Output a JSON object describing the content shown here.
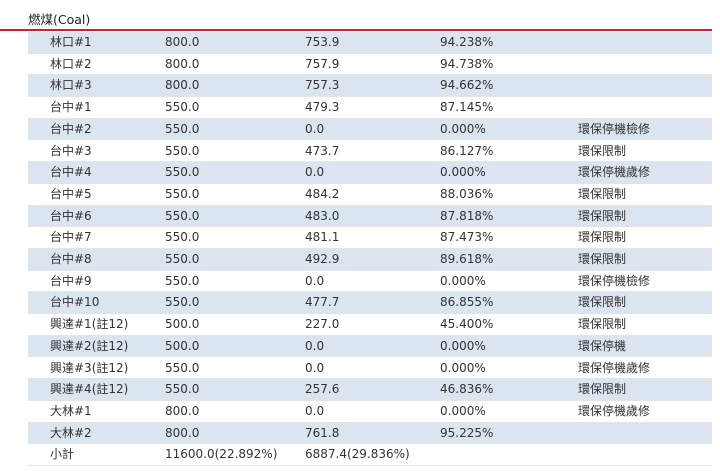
{
  "table": {
    "section": "燃煤(Coal)",
    "rows": [
      [
        "林口#1",
        "800.0",
        "753.9",
        "94.238%"
      ],
      [
        "林口#2",
        "800.0",
        "757.9",
        "94.738%"
      ],
      [
        "林口#3",
        "800.0",
        "757.3",
        "94.662%"
      ],
      [
        "台中#1",
        "550.0",
        "479.3",
        "87.145%"
      ],
      [
        "台中#2",
        "550.0",
        "0.0",
        "0.000%",
        "環保停機檢修"
      ],
      [
        "台中#3",
        "550.0",
        "473.7",
        "86.127%",
        "環保限制"
      ],
      [
        "台中#4",
        "550.0",
        "0.0",
        "0.000%",
        "環保停機歲修"
      ],
      [
        "台中#5",
        "550.0",
        "484.2",
        "88.036%",
        "環保限制"
      ],
      [
        "台中#6",
        "550.0",
        "483.0",
        "87.818%",
        "環保限制"
      ],
      [
        "台中#7",
        "550.0",
        "481.1",
        "87.473%",
        "環保限制"
      ],
      [
        "台中#8",
        "550.0",
        "492.9",
        "89.618%",
        "環保限制"
      ],
      [
        "台中#9",
        "550.0",
        "0.0",
        "0.000%",
        "環保停機檢修"
      ],
      [
        "台中#10",
        "550.0",
        "477.7",
        "86.855%",
        "環保限制"
      ],
      [
        "興達#1(註12)",
        "500.0",
        "227.0",
        "45.400%",
        "環保限制"
      ],
      [
        "興達#2(註12)",
        "500.0",
        "0.0",
        "0.000%",
        "環保停機"
      ],
      [
        "興達#3(註12)",
        "550.0",
        "0.0",
        "0.000%",
        "環保停機歲修"
      ],
      [
        "興達#4(註12)",
        "550.0",
        "257.6",
        "46.836%",
        "環保限制"
      ],
      [
        "大林#1",
        "800.0",
        "0.0",
        "0.000%",
        "環保停機歲修"
      ],
      [
        "大林#2",
        "800.0",
        "761.8",
        "95.225%"
      ],
      [
        "小計",
        "11600.0(22.892%)",
        "6887.4(29.836%)"
      ]
    ]
  }
}
